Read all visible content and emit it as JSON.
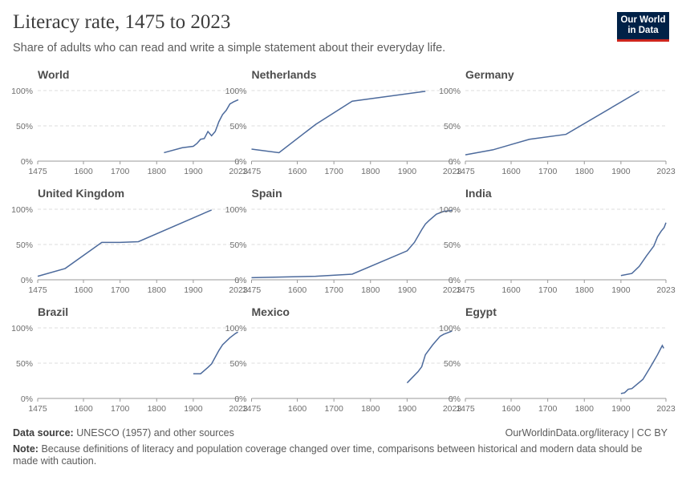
{
  "title": "Literacy rate, 1475 to 2023",
  "subtitle": "Share of adults who can read and write a simple statement about their everyday life.",
  "logo": [
    "Our World",
    "in Data"
  ],
  "source_label": "Data source:",
  "source": "UNESCO (1957) and other sources",
  "credit": "OurWorldinData.org/literacy | CC BY",
  "note_label": "Note:",
  "note": "Because definitions of literacy and population coverage changed over time, comparisons between historical and modern data should be made with caution.",
  "chart_data": [
    {
      "type": "line",
      "title": "World",
      "color": "#4c6a9c",
      "grid": true,
      "x": [
        1820,
        1870,
        1900,
        1910,
        1920,
        1930,
        1940,
        1950,
        1960,
        1970,
        1980,
        1990,
        2000,
        2010,
        2023
      ],
      "values": [
        12,
        19,
        21,
        25,
        31,
        32,
        42,
        36,
        42,
        56,
        66,
        72,
        81,
        84,
        87
      ],
      "xlim": [
        1475,
        2023
      ],
      "xticks": [
        1475,
        1600,
        1700,
        1800,
        1900,
        2023
      ],
      "ylim": [
        0,
        100
      ],
      "yticks": [
        {
          "value": 0,
          "label": "0%"
        },
        {
          "value": 50,
          "label": "50%"
        },
        {
          "value": 100,
          "label": "100%"
        }
      ]
    },
    {
      "type": "line",
      "title": "Netherlands",
      "color": "#4c6a9c",
      "grid": true,
      "x": [
        1475,
        1550,
        1650,
        1750,
        1950
      ],
      "values": [
        17,
        12,
        52,
        85,
        99
      ],
      "xlim": [
        1475,
        2023
      ],
      "xticks": [
        1475,
        1600,
        1700,
        1800,
        1900,
        2023
      ],
      "ylim": [
        0,
        100
      ],
      "yticks": [
        {
          "value": 0,
          "label": "0%"
        },
        {
          "value": 50,
          "label": "50%"
        },
        {
          "value": 100,
          "label": "100%"
        }
      ]
    },
    {
      "type": "line",
      "title": "Germany",
      "color": "#4c6a9c",
      "grid": true,
      "x": [
        1475,
        1550,
        1650,
        1750,
        1950
      ],
      "values": [
        9,
        16,
        31,
        38,
        99
      ],
      "xlim": [
        1475,
        2023
      ],
      "xticks": [
        1475,
        1600,
        1700,
        1800,
        1900,
        2023
      ],
      "ylim": [
        0,
        100
      ],
      "yticks": [
        {
          "value": 0,
          "label": "0%"
        },
        {
          "value": 50,
          "label": "50%"
        },
        {
          "value": 100,
          "label": "100%"
        }
      ]
    },
    {
      "type": "line",
      "title": "United Kingdom",
      "color": "#4c6a9c",
      "grid": true,
      "x": [
        1475,
        1550,
        1650,
        1700,
        1750,
        1950
      ],
      "values": [
        5,
        16,
        53,
        53,
        54,
        99
      ],
      "xlim": [
        1475,
        2023
      ],
      "xticks": [
        1475,
        1600,
        1700,
        1800,
        1900,
        2023
      ],
      "ylim": [
        0,
        100
      ],
      "yticks": [
        {
          "value": 0,
          "label": "0%"
        },
        {
          "value": 50,
          "label": "50%"
        },
        {
          "value": 100,
          "label": "100%"
        }
      ]
    },
    {
      "type": "line",
      "title": "Spain",
      "color": "#4c6a9c",
      "grid": true,
      "x": [
        1475,
        1650,
        1750,
        1900,
        1920,
        1940,
        1950,
        1960,
        1980,
        2000,
        2020,
        2023
      ],
      "values": [
        3,
        5,
        8,
        41,
        53,
        71,
        79,
        84,
        93,
        97,
        98,
        99
      ],
      "xlim": [
        1475,
        2023
      ],
      "xticks": [
        1475,
        1600,
        1700,
        1800,
        1900,
        2023
      ],
      "ylim": [
        0,
        100
      ],
      "yticks": [
        {
          "value": 0,
          "label": "0%"
        },
        {
          "value": 50,
          "label": "50%"
        },
        {
          "value": 100,
          "label": "100%"
        }
      ]
    },
    {
      "type": "line",
      "title": "India",
      "color": "#4c6a9c",
      "grid": true,
      "x": [
        1900,
        1930,
        1950,
        1970,
        1990,
        2000,
        2010,
        2018,
        2023
      ],
      "values": [
        6,
        9,
        19,
        34,
        48,
        61,
        69,
        74,
        81
      ],
      "xlim": [
        1475,
        2023
      ],
      "xticks": [
        1475,
        1600,
        1700,
        1800,
        1900,
        2023
      ],
      "ylim": [
        0,
        100
      ],
      "yticks": [
        {
          "value": 0,
          "label": "0%"
        },
        {
          "value": 50,
          "label": "50%"
        },
        {
          "value": 100,
          "label": "100%"
        }
      ]
    },
    {
      "type": "line",
      "title": "Brazil",
      "color": "#4c6a9c",
      "grid": true,
      "x": [
        1900,
        1920,
        1940,
        1950,
        1970,
        1980,
        2000,
        2010,
        2015,
        2022
      ],
      "values": [
        35,
        35,
        44,
        49,
        68,
        76,
        86,
        90,
        92,
        94
      ],
      "xlim": [
        1475,
        2023
      ],
      "xticks": [
        1475,
        1600,
        1700,
        1800,
        1900,
        2023
      ],
      "ylim": [
        0,
        100
      ],
      "yticks": [
        {
          "value": 0,
          "label": "0%"
        },
        {
          "value": 50,
          "label": "50%"
        },
        {
          "value": 100,
          "label": "100%"
        }
      ]
    },
    {
      "type": "line",
      "title": "Mexico",
      "color": "#4c6a9c",
      "grid": true,
      "x": [
        1900,
        1930,
        1940,
        1950,
        1970,
        1990,
        2000,
        2010,
        2020,
        2023
      ],
      "values": [
        22,
        38,
        45,
        62,
        76,
        88,
        91,
        93,
        95,
        96
      ],
      "xlim": [
        1475,
        2023
      ],
      "xticks": [
        1475,
        1600,
        1700,
        1800,
        1900,
        2023
      ],
      "ylim": [
        0,
        100
      ],
      "yticks": [
        {
          "value": 0,
          "label": "0%"
        },
        {
          "value": 50,
          "label": "50%"
        },
        {
          "value": 100,
          "label": "100%"
        }
      ]
    },
    {
      "type": "line",
      "title": "Egypt",
      "color": "#4c6a9c",
      "grid": true,
      "x": [
        1900,
        1910,
        1920,
        1930,
        1960,
        1980,
        1990,
        2000,
        2010,
        2013,
        2017
      ],
      "values": [
        7,
        8,
        13,
        14,
        27,
        44,
        53,
        62,
        72,
        75,
        71
      ],
      "xlim": [
        1475,
        2023
      ],
      "xticks": [
        1475,
        1600,
        1700,
        1800,
        1900,
        2023
      ],
      "ylim": [
        0,
        100
      ],
      "yticks": [
        {
          "value": 0,
          "label": "0%"
        },
        {
          "value": 50,
          "label": "50%"
        },
        {
          "value": 100,
          "label": "100%"
        }
      ]
    }
  ]
}
